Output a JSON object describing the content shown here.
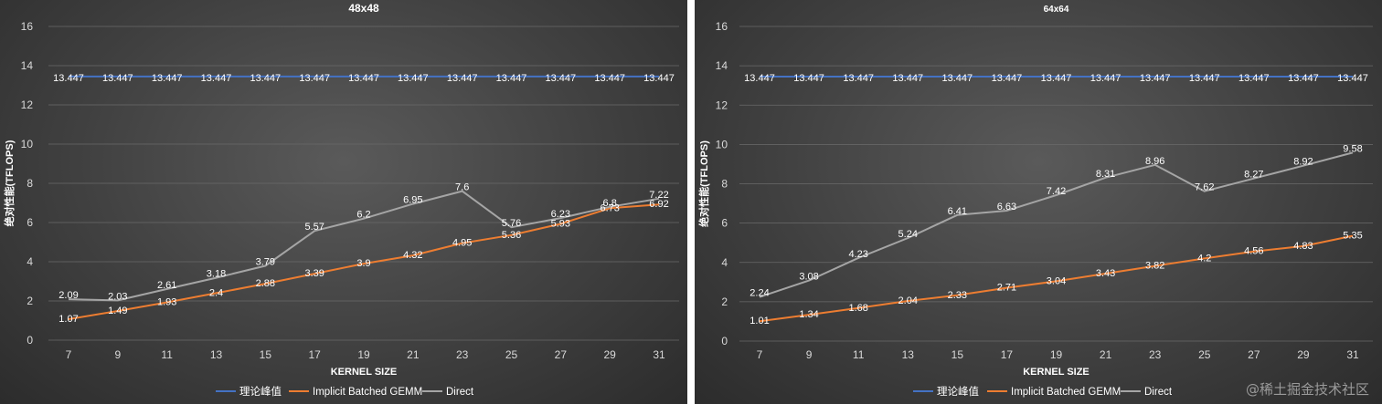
{
  "watermark": "@稀土掘金技术社区",
  "chart_data": [
    {
      "type": "line",
      "title": "48x48",
      "xlabel": "KERNEL SIZE",
      "ylabel": "绝对性能(TFLOPS)",
      "ylim": [
        0,
        16
      ],
      "yticks": [
        0,
        2,
        4,
        6,
        8,
        10,
        12,
        14,
        16
      ],
      "categories": [
        "7",
        "9",
        "11",
        "13",
        "15",
        "17",
        "19",
        "21",
        "23",
        "25",
        "27",
        "29",
        "31"
      ],
      "grid": true,
      "legend": "bottom",
      "series": [
        {
          "name": "理论峰值",
          "color": "#4472c4",
          "values": [
            13.447,
            13.447,
            13.447,
            13.447,
            13.447,
            13.447,
            13.447,
            13.447,
            13.447,
            13.447,
            13.447,
            13.447,
            13.447
          ]
        },
        {
          "name": "Implicit Batched GEMM",
          "color": "#ed7d31",
          "values": [
            1.07,
            1.49,
            1.93,
            2.4,
            2.88,
            3.39,
            3.9,
            4.32,
            4.95,
            5.36,
            5.93,
            6.73,
            6.92
          ]
        },
        {
          "name": "Direct",
          "color": "#a5a5a5",
          "values": [
            2.09,
            2.03,
            2.61,
            3.18,
            3.79,
            5.57,
            6.2,
            6.95,
            7.6,
            5.76,
            6.23,
            6.8,
            7.22
          ]
        }
      ]
    },
    {
      "type": "line",
      "title": "64x64",
      "xlabel": "KERNEL SIZE",
      "ylabel": "绝对性能(TFLOPS)",
      "ylim": [
        0,
        16
      ],
      "yticks": [
        0,
        2,
        4,
        6,
        8,
        10,
        12,
        14,
        16
      ],
      "categories": [
        "7",
        "9",
        "11",
        "13",
        "15",
        "17",
        "19",
        "21",
        "23",
        "25",
        "27",
        "29",
        "31"
      ],
      "grid": true,
      "legend": "bottom",
      "series": [
        {
          "name": "理论峰值",
          "color": "#4472c4",
          "values": [
            13.447,
            13.447,
            13.447,
            13.447,
            13.447,
            13.447,
            13.447,
            13.447,
            13.447,
            13.447,
            13.447,
            13.447,
            13.447
          ]
        },
        {
          "name": "Implicit Batched GEMM",
          "color": "#ed7d31",
          "values": [
            1.01,
            1.34,
            1.68,
            2.04,
            2.33,
            2.71,
            3.04,
            3.43,
            3.82,
            4.2,
            4.56,
            4.83,
            5.35
          ]
        },
        {
          "name": "Direct",
          "color": "#a5a5a5",
          "values": [
            2.24,
            3.08,
            4.23,
            5.24,
            6.41,
            6.63,
            7.42,
            8.31,
            8.96,
            7.62,
            8.27,
            8.92,
            9.58
          ]
        }
      ]
    }
  ]
}
